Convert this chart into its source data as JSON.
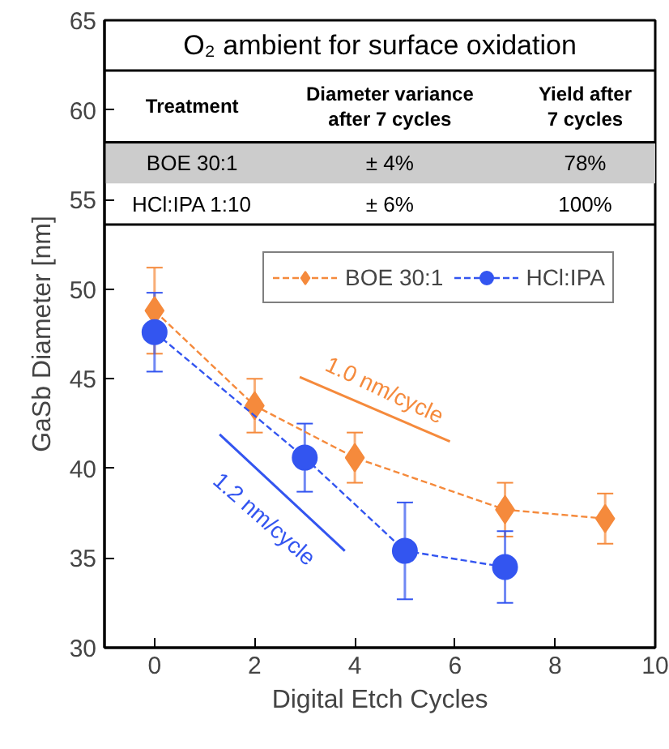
{
  "chart_data": {
    "type": "line",
    "xlabel": "Digital Etch Cycles",
    "ylabel": "GaSb Diameter [nm]",
    "xlim": [
      -1,
      10
    ],
    "ylim": [
      30,
      65
    ],
    "xticks": [
      0,
      2,
      4,
      6,
      8,
      10
    ],
    "yticks": [
      30,
      35,
      40,
      45,
      50,
      55,
      60,
      65
    ],
    "grid": false,
    "bands": [
      {
        "axis": "y",
        "from": 55.9,
        "to": 58.2,
        "color": "#cccccc"
      }
    ],
    "legend": "top right",
    "line_style": "dashed",
    "series": [
      {
        "name": "BOE 30:1",
        "color": "#f58a3c",
        "marker": "diamond",
        "x": [
          0,
          2,
          4,
          7,
          9
        ],
        "values": [
          48.8,
          43.5,
          40.6,
          37.7,
          37.2
        ],
        "errors": [
          2.4,
          1.5,
          1.4,
          1.5,
          1.4
        ]
      },
      {
        "name": "HCl:IPA",
        "color": "#3355f0",
        "marker": "circle",
        "x": [
          0,
          3,
          5,
          7
        ],
        "values": [
          47.6,
          40.6,
          35.4,
          34.5
        ],
        "errors": [
          2.2,
          1.9,
          2.7,
          2.0
        ]
      },
      {
        "type": "line",
        "color": "#f58a3c",
        "line_style": "solid",
        "marker": "none",
        "x": [
          2.9,
          5.9
        ],
        "values": [
          45.1,
          41.5
        ]
      },
      {
        "type": "line",
        "color": "#3355f0",
        "line_style": "solid",
        "marker": "none",
        "x": [
          1.3,
          3.8
        ],
        "values": [
          41.9,
          35.4
        ]
      }
    ],
    "annotations": [
      "O₂ ambient for surface oxidation",
      "Treatment",
      "Diameter variance\nafter 7 cycles",
      "Yield after\n7 cycles",
      "BOE 30:1",
      "± 4%",
      "78%",
      "HCl:IPA 1:10",
      "± 6%",
      "100%",
      "1.0 nm/cycle",
      "1.2 nm/cycle"
    ]
  }
}
